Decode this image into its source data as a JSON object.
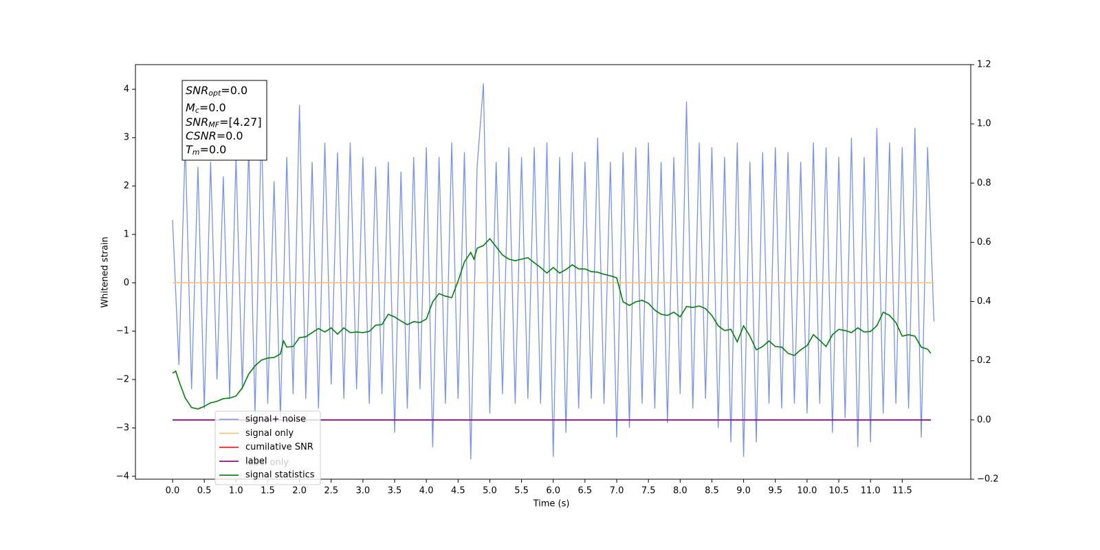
{
  "chart_data": {
    "type": "line",
    "xlabel": "Time (s)",
    "ylabel": "Whitened strain",
    "xlim": [
      -0.585,
      12.58
    ],
    "ylim": [
      -4.06,
      4.51
    ],
    "y2lim": [
      -0.2,
      1.2
    ],
    "xticks": [
      {
        "value": 0,
        "label": "0.0"
      },
      0.5,
      {
        "value": 1,
        "label": "1.0"
      },
      1.5,
      {
        "value": 2,
        "label": "2.0"
      },
      2.5,
      {
        "value": 3,
        "label": "3.0"
      },
      3.5,
      {
        "value": 4,
        "label": "4.0"
      },
      4.5,
      {
        "value": 5,
        "label": "5.0"
      },
      5.5,
      {
        "value": 6,
        "label": "6.0"
      },
      6.5,
      {
        "value": 7,
        "label": "7.0"
      },
      7.5,
      {
        "value": 8,
        "label": "8.0"
      },
      8.5,
      {
        "value": 9,
        "label": "9.0"
      },
      9.5,
      {
        "value": 10,
        "label": "10.0"
      },
      10.5,
      {
        "value": 11,
        "label": "11.0"
      },
      11.5
    ],
    "yticks": [
      {
        "value": -4,
        "label": "−4"
      },
      {
        "value": -3,
        "label": "−3"
      },
      {
        "value": -2,
        "label": "−2"
      },
      {
        "value": -1,
        "label": "−1"
      },
      0,
      1,
      2,
      3,
      4
    ],
    "y2ticks": [
      {
        "value": -0.2,
        "label": "−0.2"
      },
      {
        "value": 0,
        "label": "0.0"
      },
      0.2,
      0.4,
      0.6,
      0.8,
      {
        "value": 1,
        "label": "1.0"
      },
      1.2
    ],
    "annotations": [
      {
        "symbol": "SNR",
        "sub": "opt",
        "value": "=0.0"
      },
      {
        "symbol": "M",
        "sub": "c",
        "value": "=0.0"
      },
      {
        "symbol": "SNR",
        "sub": "MF",
        "value": "=[4.27]"
      },
      {
        "symbol": "CSNR",
        "sub": "",
        "value": "=0.0"
      },
      {
        "symbol": "T",
        "sub": "m",
        "value": "=0.0"
      }
    ],
    "legend_hidden_text": "label only",
    "series": [
      {
        "name": "signal+ noise",
        "color": "#7793e8",
        "x": [
          0,
          0.1,
          0.2,
          0.3,
          0.4,
          0.5,
          0.6,
          0.7,
          0.8,
          0.9,
          1.0,
          1.1,
          1.2,
          1.3,
          1.4,
          1.5,
          1.6,
          1.7,
          1.8,
          1.9,
          2.0,
          2.1,
          2.2,
          2.3,
          2.4,
          2.5,
          2.6,
          2.7,
          2.8,
          2.9,
          3.0,
          3.1,
          3.2,
          3.3,
          3.4,
          3.5,
          3.6,
          3.7,
          3.8,
          3.9,
          4.0,
          4.1,
          4.2,
          4.3,
          4.4,
          4.5,
          4.6,
          4.7,
          4.8,
          4.9,
          5.0,
          5.1,
          5.2,
          5.3,
          5.4,
          5.5,
          5.6,
          5.7,
          5.8,
          5.9,
          6.0,
          6.1,
          6.2,
          6.3,
          6.4,
          6.5,
          6.6,
          6.7,
          6.8,
          6.9,
          7.0,
          7.1,
          7.2,
          7.3,
          7.4,
          7.5,
          7.6,
          7.7,
          7.8,
          7.9,
          8.0,
          8.1,
          8.2,
          8.3,
          8.4,
          8.5,
          8.6,
          8.7,
          8.8,
          8.9,
          9.0,
          9.1,
          9.2,
          9.3,
          9.4,
          9.5,
          9.6,
          9.7,
          9.8,
          9.9,
          10.0,
          10.1,
          10.2,
          10.3,
          10.4,
          10.5,
          10.6,
          10.7,
          10.8,
          10.9,
          11.0,
          11.1,
          11.2,
          11.3,
          11.4,
          11.5,
          11.6,
          11.7,
          11.8,
          11.9,
          12.0
        ],
        "values": [
          1.3,
          -1.7,
          2.9,
          -2.2,
          2.4,
          -2.6,
          2.5,
          -2.0,
          2.2,
          -2.4,
          2.6,
          -2.2,
          2.8,
          -2.7,
          3.3,
          -2.5,
          2.1,
          -2.8,
          2.6,
          -2.3,
          3.68,
          -2.4,
          2.5,
          -2.6,
          2.9,
          -2.1,
          2.7,
          -2.4,
          2.9,
          -2.2,
          2.6,
          -2.5,
          2.4,
          -2.3,
          2.5,
          -3.1,
          2.3,
          -2.6,
          2.6,
          -2.2,
          2.8,
          -3.4,
          2.6,
          -2.5,
          2.9,
          -2.4,
          2.7,
          -3.65,
          2.4,
          4.12,
          -2.7,
          2.5,
          -2.3,
          2.8,
          -2.5,
          2.6,
          -2.4,
          2.8,
          -2.5,
          2.9,
          -3.6,
          2.6,
          -3.1,
          2.7,
          -2.6,
          2.5,
          -2.4,
          3.0,
          -2.5,
          2.5,
          -3.2,
          2.7,
          -3.0,
          2.8,
          -2.5,
          2.9,
          -2.6,
          2.5,
          -2.9,
          2.6,
          -2.3,
          3.75,
          -2.6,
          2.9,
          -2.4,
          2.8,
          -3.0,
          2.6,
          -3.3,
          2.9,
          -3.6,
          2.5,
          -3.3,
          2.7,
          -2.5,
          2.8,
          -2.6,
          2.7,
          -2.5,
          2.5,
          -2.7,
          2.9,
          -2.5,
          2.8,
          -3.1,
          2.6,
          -2.8,
          3.0,
          -3.4,
          2.6,
          -3.3,
          3.2,
          -2.7,
          2.9,
          -2.5,
          2.8,
          -2.6,
          3.2,
          -3.2,
          2.8,
          -0.8
        ]
      },
      {
        "name": "signal only",
        "color": "#ffc16b",
        "x": [
          0,
          12
        ],
        "values": [
          0,
          0
        ]
      },
      {
        "name": "cumilative SNR",
        "color": "#ff0000",
        "axis": "y2",
        "x": [
          0,
          11.95
        ],
        "values": [
          0,
          0
        ]
      },
      {
        "name": "label",
        "color": "#800080",
        "axis": "y2",
        "x": [
          0,
          11.95
        ],
        "values": [
          0,
          0
        ]
      },
      {
        "name": "signal statistics",
        "color": "#008000",
        "axis": "y2",
        "x": [
          0,
          0.05,
          0.1,
          0.2,
          0.3,
          0.4,
          0.5,
          0.6,
          0.7,
          0.8,
          0.9,
          1.0,
          1.1,
          1.2,
          1.3,
          1.4,
          1.5,
          1.6,
          1.7,
          1.75,
          1.8,
          1.9,
          2.0,
          2.1,
          2.2,
          2.3,
          2.4,
          2.5,
          2.6,
          2.7,
          2.8,
          2.9,
          3.0,
          3.1,
          3.2,
          3.3,
          3.4,
          3.5,
          3.6,
          3.7,
          3.8,
          3.9,
          4.0,
          4.1,
          4.2,
          4.3,
          4.4,
          4.5,
          4.6,
          4.7,
          4.75,
          4.8,
          4.9,
          5.0,
          5.1,
          5.2,
          5.3,
          5.4,
          5.5,
          5.6,
          5.7,
          5.8,
          5.9,
          6.0,
          6.1,
          6.2,
          6.3,
          6.4,
          6.5,
          6.6,
          6.7,
          6.8,
          6.9,
          7.0,
          7.1,
          7.2,
          7.3,
          7.4,
          7.5,
          7.6,
          7.7,
          7.8,
          7.9,
          8.0,
          8.1,
          8.2,
          8.3,
          8.4,
          8.5,
          8.6,
          8.7,
          8.8,
          8.9,
          9.0,
          9.1,
          9.2,
          9.3,
          9.4,
          9.5,
          9.6,
          9.7,
          9.8,
          9.9,
          10.0,
          10.1,
          10.2,
          10.3,
          10.4,
          10.5,
          10.6,
          10.7,
          10.8,
          10.9,
          11.0,
          11.1,
          11.2,
          11.3,
          11.4,
          11.5,
          11.6,
          11.7,
          11.8,
          11.9,
          11.95
        ],
        "values": [
          0.158,
          0.165,
          0.132,
          0.074,
          0.042,
          0.037,
          0.046,
          0.058,
          0.063,
          0.072,
          0.074,
          0.081,
          0.109,
          0.155,
          0.183,
          0.202,
          0.209,
          0.211,
          0.223,
          0.267,
          0.246,
          0.248,
          0.278,
          0.281,
          0.295,
          0.309,
          0.297,
          0.311,
          0.29,
          0.311,
          0.295,
          0.297,
          0.295,
          0.299,
          0.32,
          0.322,
          0.357,
          0.348,
          0.334,
          0.322,
          0.332,
          0.329,
          0.341,
          0.399,
          0.427,
          0.418,
          0.413,
          0.469,
          0.534,
          0.566,
          0.543,
          0.58,
          0.589,
          0.612,
          0.585,
          0.557,
          0.543,
          0.538,
          0.543,
          0.548,
          0.531,
          0.515,
          0.496,
          0.515,
          0.496,
          0.508,
          0.524,
          0.51,
          0.51,
          0.501,
          0.499,
          0.492,
          0.487,
          0.48,
          0.399,
          0.387,
          0.399,
          0.404,
          0.394,
          0.371,
          0.357,
          0.353,
          0.364,
          0.348,
          0.383,
          0.38,
          0.385,
          0.376,
          0.353,
          0.318,
          0.302,
          0.306,
          0.264,
          0.318,
          0.283,
          0.237,
          0.248,
          0.267,
          0.248,
          0.246,
          0.225,
          0.218,
          0.237,
          0.251,
          0.288,
          0.269,
          0.248,
          0.288,
          0.306,
          0.302,
          0.295,
          0.311,
          0.297,
          0.299,
          0.318,
          0.364,
          0.353,
          0.329,
          0.283,
          0.288,
          0.283,
          0.246,
          0.239,
          0.225
        ]
      }
    ]
  }
}
